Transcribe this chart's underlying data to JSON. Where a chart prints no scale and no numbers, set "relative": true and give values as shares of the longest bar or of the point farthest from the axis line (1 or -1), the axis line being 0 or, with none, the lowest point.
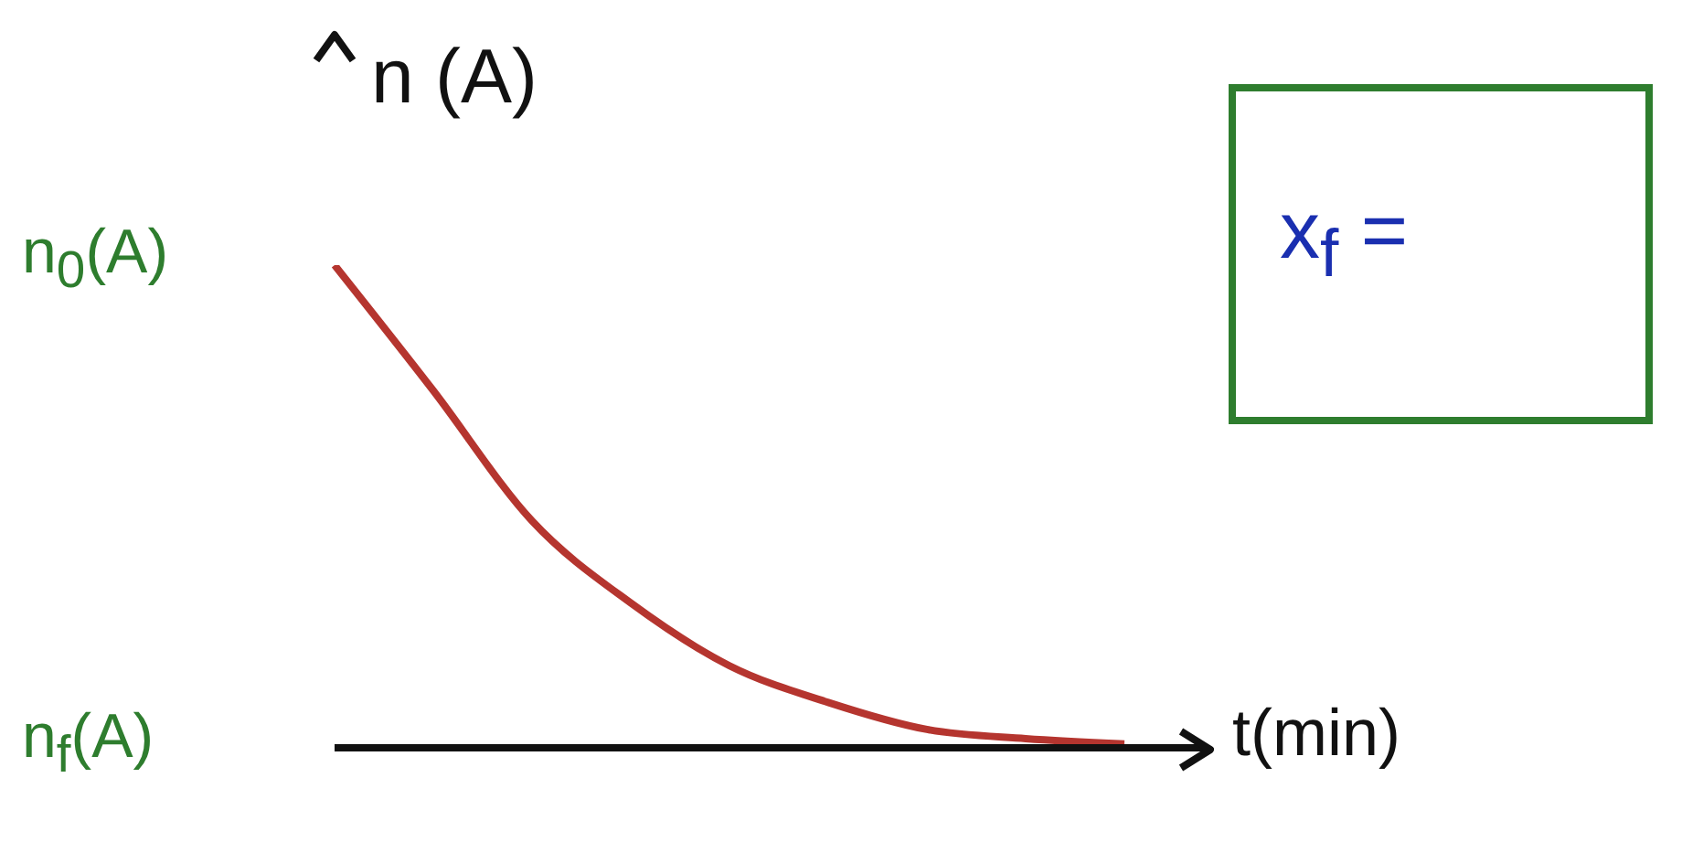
{
  "chart_data": {
    "type": "line",
    "relative": true,
    "ylabel": "n (A)",
    "xlabel": "t(min)",
    "categories": [
      null,
      null,
      null,
      null,
      null,
      null,
      null,
      null,
      null
    ],
    "series": [
      {
        "color": "#b5352f",
        "values": [
          1,
          0.74,
          0.47,
          0.3,
          0.17,
          0.094,
          0.038,
          0.019,
          0.008
        ]
      }
    ],
    "annotations": [
      "n$_{0}$(A)",
      "n$_{f}$(A)",
      "x$_{f}$ ="
    ],
    "marker": "none",
    "line_style": "solid",
    "grid": false,
    "legend": false
  }
}
